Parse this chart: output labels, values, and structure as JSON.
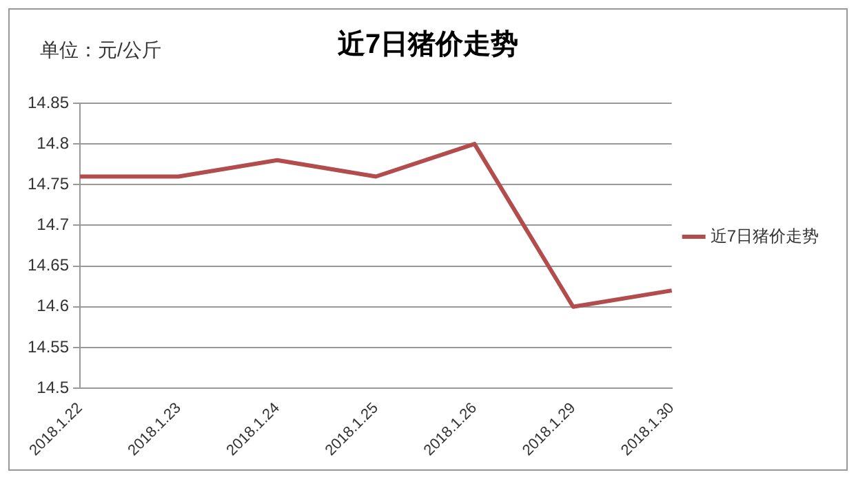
{
  "chart_data": {
    "type": "line",
    "title": "近7日猪价走势",
    "ylabel": "单位：元/公斤",
    "categories": [
      "2018.1.22",
      "2018.1.23",
      "2018.1.24",
      "2018.1.25",
      "2018.1.26",
      "2018.1.29",
      "2018.1.30"
    ],
    "series": [
      {
        "name": "近7日猪价走势",
        "color": "#b34d4d",
        "values": [
          14.76,
          14.76,
          14.78,
          14.76,
          14.8,
          14.6,
          14.62
        ]
      }
    ],
    "ylim": [
      14.5,
      14.85
    ],
    "yticks": [
      14.5,
      14.55,
      14.6,
      14.65,
      14.7,
      14.75,
      14.8,
      14.85
    ],
    "grid": "y",
    "legend": "right",
    "marker": "none",
    "line_style": "solid"
  }
}
